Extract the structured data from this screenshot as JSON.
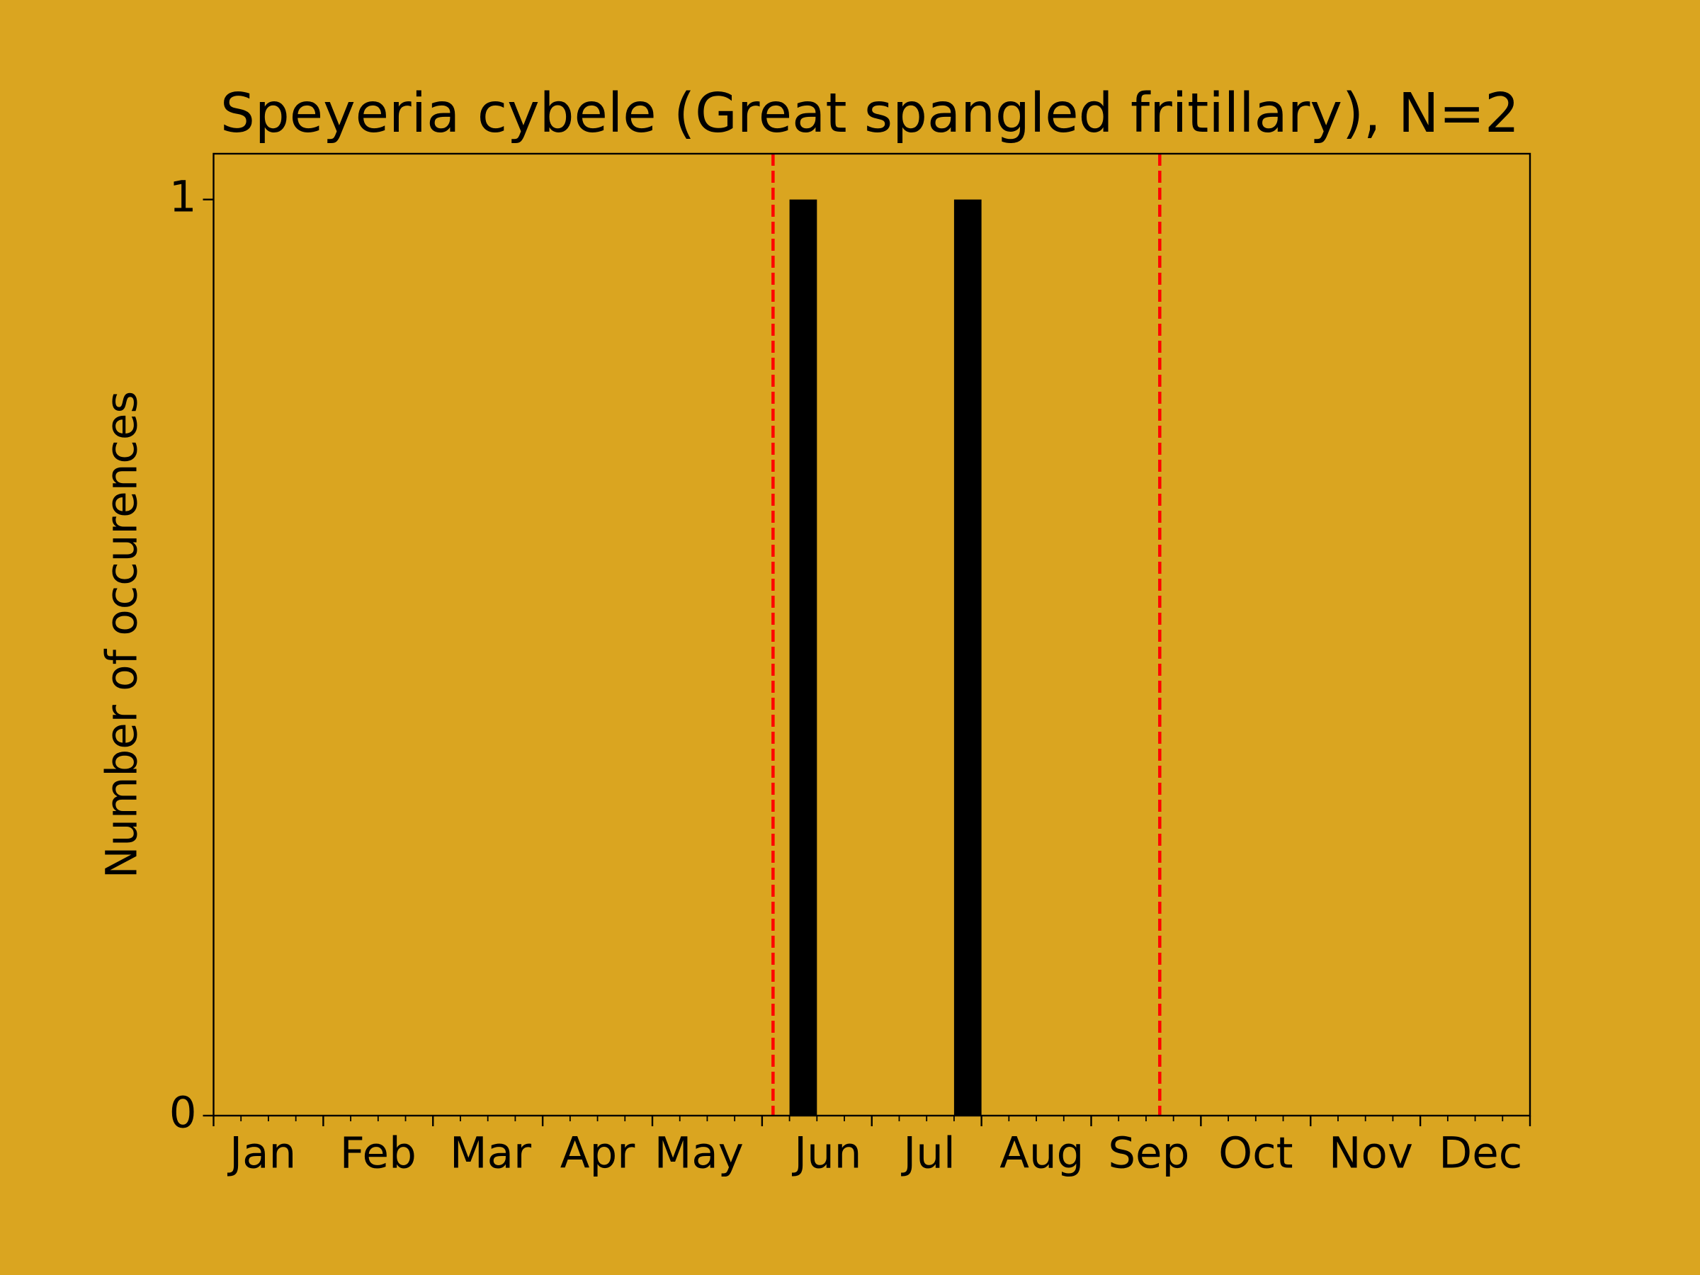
{
  "chart_data": {
    "type": "histogram",
    "title": "Speyeria cybele (Great spangled fritillary), N=2",
    "ylabel": "Number of occurences",
    "bins": [
      0,
      1,
      2,
      3,
      4,
      5,
      6,
      7,
      8,
      9,
      10,
      11,
      12,
      13,
      14,
      15,
      16,
      17,
      18,
      19,
      20,
      21,
      22,
      23,
      24,
      25,
      26,
      27,
      28,
      29,
      30,
      31,
      32,
      33,
      34,
      35,
      36,
      37,
      38,
      39,
      40,
      41,
      42,
      43,
      44,
      45,
      46,
      47,
      48
    ],
    "values": [
      0,
      0,
      0,
      0,
      0,
      0,
      0,
      0,
      0,
      0,
      0,
      0,
      0,
      0,
      0,
      0,
      0,
      0,
      0,
      0,
      0,
      1,
      0,
      0,
      0,
      0,
      0,
      1,
      0,
      0,
      0,
      0,
      0,
      0,
      0,
      0,
      0,
      0,
      0,
      0,
      0,
      0,
      0,
      0,
      0,
      0,
      0,
      0
    ],
    "color": "#000000",
    "xlim": [
      0,
      48
    ],
    "xticks": [
      0,
      4,
      8,
      12,
      16,
      20,
      24,
      28,
      32,
      36,
      40,
      44,
      48
    ],
    "xticks_minor": [
      1,
      2,
      3,
      5,
      6,
      7,
      9,
      10,
      11,
      13,
      14,
      15,
      17,
      18,
      19,
      21,
      22,
      23,
      25,
      26,
      27,
      29,
      30,
      31,
      33,
      34,
      35,
      37,
      38,
      39,
      41,
      42,
      43,
      45,
      46,
      47
    ],
    "month_labels": [
      {
        "value": 1.8,
        "label": "Jan"
      },
      {
        "value": 6.0,
        "label": "Feb"
      },
      {
        "value": 10.1,
        "label": "Mar"
      },
      {
        "value": 14.0,
        "label": "Apr"
      },
      {
        "value": 17.7,
        "label": "May"
      },
      {
        "value": 22.4,
        "label": "Jun"
      },
      {
        "value": 26.1,
        "label": "Jul"
      },
      {
        "value": 30.2,
        "label": "Aug"
      },
      {
        "value": 34.1,
        "label": "Sep"
      },
      {
        "value": 38.0,
        "label": "Oct"
      },
      {
        "value": 42.2,
        "label": "Nov"
      },
      {
        "value": 46.2,
        "label": "Dec"
      }
    ],
    "vlines": [
      20.4,
      34.5
    ],
    "vline_color": "#ff0000",
    "ylim": [
      0,
      1.05
    ],
    "yticks": [
      0,
      1
    ],
    "background": "#daa520"
  }
}
